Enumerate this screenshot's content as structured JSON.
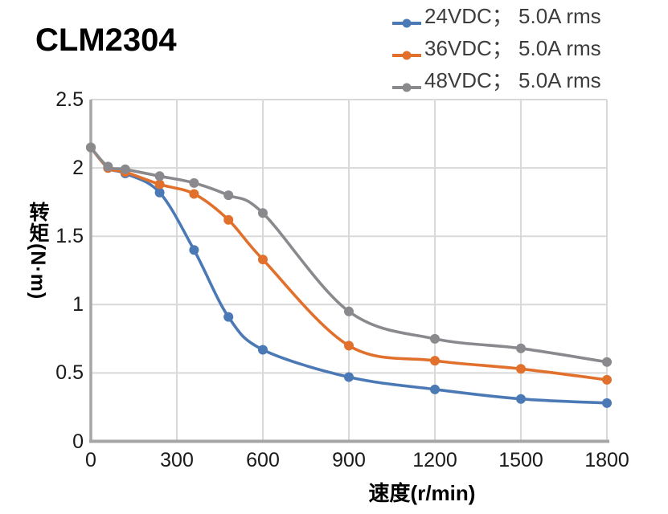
{
  "title": "CLM2304",
  "chart_data": {
    "type": "line",
    "title": "CLM2304",
    "xlabel": "速度(r/min)",
    "ylabel": "转矩(N·m)",
    "xlim": [
      0,
      1800
    ],
    "ylim": [
      0,
      2.5
    ],
    "grid": true,
    "legend_position": "top-right",
    "x": [
      0,
      60,
      120,
      240,
      360,
      480,
      600,
      900,
      1200,
      1500,
      1800
    ],
    "series": [
      {
        "name": "24VDC； 5.0A rms",
        "color": "#4A79B5",
        "values": [
          2.15,
          2.0,
          1.96,
          1.82,
          1.4,
          0.91,
          0.67,
          0.47,
          0.38,
          0.31,
          0.28
        ]
      },
      {
        "name": "36VDC； 5.0A rms",
        "color": "#E1702D",
        "values": [
          2.15,
          2.0,
          1.97,
          1.88,
          1.81,
          1.62,
          1.33,
          0.7,
          0.59,
          0.53,
          0.45
        ]
      },
      {
        "name": "48VDC； 5.0A rms",
        "color": "#8A8A8E",
        "values": [
          2.15,
          2.01,
          1.99,
          1.94,
          1.89,
          1.8,
          1.67,
          0.95,
          0.75,
          0.68,
          0.58
        ]
      }
    ],
    "xticks": [
      0,
      300,
      600,
      900,
      1200,
      1500,
      1800
    ],
    "xtick_labels": [
      "0",
      "300",
      "600",
      "900",
      "1200",
      "1500",
      "1800"
    ],
    "yticks": [
      0,
      0.5,
      1,
      1.5,
      2,
      2.5
    ],
    "ytick_labels": [
      "0",
      "0.5",
      "1",
      "1.5",
      "2",
      "2.5"
    ],
    "colors": {
      "grid": "#D9D9D9",
      "axis": "#A6A6A6",
      "tick_text": "#1A1A1A",
      "legend_text": "#3D3D3D",
      "title_text": "#000000"
    }
  }
}
